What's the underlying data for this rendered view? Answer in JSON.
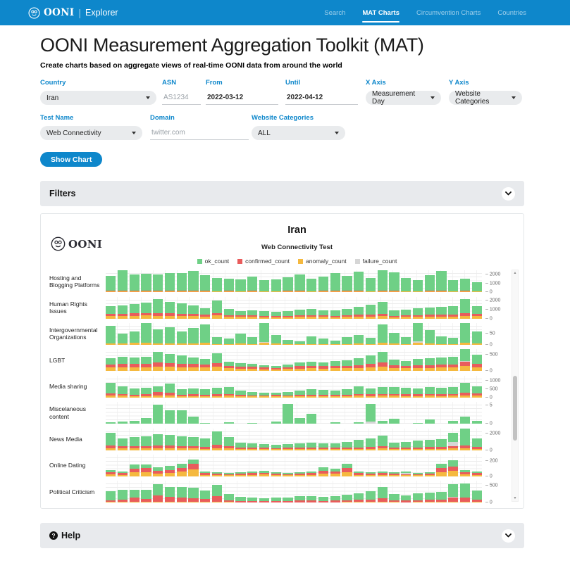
{
  "nav": {
    "brand": "OONI",
    "brand_sub": "Explorer",
    "items": [
      {
        "label": "Search",
        "active": false
      },
      {
        "label": "MAT Charts",
        "active": true
      },
      {
        "label": "Circumvention Charts",
        "active": false
      },
      {
        "label": "Countries",
        "active": false
      }
    ]
  },
  "header": {
    "title": "OONI Measurement Aggregation Toolkit (MAT)",
    "subtitle": "Create charts based on aggregate views of real-time OONI data from around the world"
  },
  "form": {
    "fields": [
      {
        "label": "Country",
        "type": "select",
        "value": "Iran"
      },
      {
        "label": "ASN",
        "type": "input",
        "placeholder": "AS1234"
      },
      {
        "label": "From",
        "type": "date",
        "value": "2022-03-12"
      },
      {
        "label": "Until",
        "type": "date",
        "value": "2022-04-12"
      },
      {
        "label": "X Axis",
        "type": "select",
        "value": "Measurement Day"
      },
      {
        "label": "Y Axis",
        "type": "select",
        "value": "Website Categories"
      },
      {
        "label": "Test Name",
        "type": "select",
        "value": "Web Connectivity"
      },
      {
        "label": "Domain",
        "type": "input",
        "placeholder": "twitter.com"
      },
      {
        "label": "Website Categories",
        "type": "select",
        "value": "ALL"
      }
    ],
    "submit_label": "Show Chart"
  },
  "filters": {
    "label": "Filters"
  },
  "help": {
    "label": "Help"
  },
  "chart": {
    "watermark_label": "OONI"
  },
  "accent_color": "#0e87cb",
  "chart_data": {
    "type": "bar",
    "stacked": true,
    "layout": "small-multiples-by-category",
    "title": "Iran",
    "subtitle": "Web Connectivity Test",
    "x_axis": "Measurement Day",
    "x_start": "2022-03-12",
    "x_end": "2022-04-12",
    "n_bars": 32,
    "legend": [
      "ok_count",
      "confirmed_count",
      "anomaly_count",
      "failure_count"
    ],
    "colors": {
      "ok_count": "#6fd086",
      "confirmed_count": "#e95c5c",
      "anomaly_count": "#f5b93f",
      "failure_count": "#d6d6d6"
    },
    "stack_order_bottom_to_top": [
      "anomaly",
      "confirmed",
      "failure",
      "ok"
    ],
    "rows": [
      {
        "category": "Hosting and Blogging Platforms",
        "max": 2500,
        "ticks": [
          2000,
          1000,
          0
        ],
        "ok": [
          1750,
          2350,
          1850,
          1950,
          1900,
          2050,
          2000,
          2300,
          1800,
          1500,
          1400,
          1350,
          1600,
          1250,
          1350,
          1550,
          1900,
          1450,
          1650,
          2000,
          1700,
          2200,
          1500,
          2350,
          2100,
          1550,
          1300,
          1800,
          2250,
          1300,
          1450,
          1050
        ],
        "confirmed": [
          70,
          60,
          80,
          70,
          60,
          70,
          80,
          70,
          60,
          50,
          60,
          50,
          70,
          40,
          50,
          60,
          70,
          50,
          60,
          70,
          60,
          70,
          50,
          80,
          70,
          50,
          40,
          60,
          70,
          40,
          60,
          50
        ],
        "anomaly": [
          90,
          110,
          100,
          90,
          100,
          110,
          100,
          90,
          80,
          70,
          80,
          70,
          90,
          60,
          70,
          80,
          90,
          70,
          80,
          90,
          80,
          90,
          70,
          100,
          90,
          70,
          60,
          80,
          90,
          60,
          80,
          70
        ],
        "failure": [
          0,
          0,
          0,
          0,
          0,
          0,
          0,
          0,
          0,
          0,
          0,
          0,
          0,
          20,
          0,
          0,
          0,
          0,
          0,
          0,
          0,
          0,
          0,
          0,
          0,
          0,
          0,
          0,
          0,
          0,
          0,
          0
        ]
      },
      {
        "category": "Human Rights Issues",
        "max": 2400,
        "ticks": [
          2000,
          1000,
          0
        ],
        "ok": [
          800,
          950,
          1050,
          1150,
          1550,
          1250,
          1100,
          950,
          700,
          1350,
          650,
          500,
          550,
          500,
          450,
          500,
          600,
          650,
          550,
          550,
          700,
          900,
          1100,
          1350,
          550,
          650,
          750,
          800,
          850,
          950,
          1550,
          850
        ],
        "confirmed": [
          250,
          220,
          280,
          300,
          260,
          280,
          260,
          240,
          200,
          300,
          180,
          150,
          160,
          150,
          140,
          150,
          170,
          180,
          160,
          150,
          180,
          200,
          220,
          250,
          150,
          170,
          190,
          200,
          200,
          220,
          280,
          250
        ],
        "anomaly": [
          280,
          260,
          300,
          320,
          300,
          310,
          280,
          260,
          220,
          320,
          200,
          170,
          180,
          160,
          150,
          160,
          180,
          190,
          170,
          160,
          190,
          210,
          230,
          260,
          160,
          180,
          200,
          210,
          210,
          230,
          290,
          260
        ]
      },
      {
        "category": "Intergovernmental Organizations",
        "max": 100,
        "ticks": [
          50,
          0
        ],
        "ok": [
          78,
          45,
          52,
          90,
          62,
          75,
          55,
          70,
          85,
          30,
          25,
          45,
          32,
          88,
          40,
          20,
          15,
          35,
          25,
          18,
          30,
          40,
          28,
          85,
          50,
          30,
          95,
          60,
          35,
          28,
          98,
          55
        ],
        "anomaly": [
          8,
          6,
          10,
          9,
          8,
          7,
          6,
          8,
          9,
          4,
          3,
          5,
          4,
          10,
          5,
          3,
          2,
          4,
          3,
          2,
          4,
          5,
          3,
          9,
          6,
          4,
          10,
          7,
          4,
          3,
          11,
          6
        ],
        "failure": [
          0,
          0,
          0,
          0,
          0,
          0,
          0,
          0,
          0,
          0,
          0,
          0,
          0,
          4,
          0,
          0,
          0,
          0,
          0,
          0,
          0,
          0,
          0,
          0,
          0,
          0,
          5,
          0,
          0,
          0,
          0,
          0
        ]
      },
      {
        "category": "LGBT",
        "max": 650,
        "ticks": [
          500,
          0
        ],
        "ok": [
          185,
          200,
          190,
          210,
          320,
          280,
          240,
          205,
          180,
          300,
          125,
          105,
          90,
          65,
          55,
          85,
          115,
          130,
          120,
          140,
          160,
          200,
          250,
          330,
          170,
          140,
          180,
          200,
          210,
          220,
          370,
          260
        ],
        "confirmed": [
          90,
          100,
          95,
          100,
          120,
          110,
          100,
          95,
          90,
          110,
          70,
          60,
          55,
          50,
          45,
          55,
          65,
          70,
          65,
          70,
          75,
          85,
          95,
          115,
          80,
          70,
          80,
          85,
          90,
          90,
          130,
          100
        ],
        "anomaly": [
          110,
          120,
          115,
          120,
          140,
          130,
          120,
          115,
          105,
          130,
          85,
          75,
          70,
          60,
          55,
          65,
          80,
          85,
          80,
          85,
          90,
          100,
          115,
          135,
          95,
          85,
          95,
          100,
          105,
          110,
          150,
          120
        ],
        "failure": [
          0,
          0,
          0,
          0,
          0,
          0,
          0,
          0,
          0,
          0,
          0,
          0,
          0,
          0,
          0,
          0,
          0,
          0,
          0,
          0,
          0,
          0,
          0,
          0,
          0,
          0,
          0,
          0,
          0,
          0,
          25,
          0
        ]
      },
      {
        "category": "Media sharing",
        "max": 1300,
        "ticks": [
          1000,
          500,
          0
        ],
        "ok": [
          650,
          460,
          350,
          400,
          360,
          560,
          310,
          350,
          320,
          380,
          420,
          260,
          200,
          180,
          150,
          200,
          250,
          300,
          280,
          250,
          300,
          450,
          350,
          400,
          420,
          380,
          350,
          400,
          380,
          420,
          600,
          450
        ],
        "confirmed": [
          120,
          110,
          90,
          100,
          185,
          160,
          90,
          100,
          90,
          100,
          110,
          80,
          70,
          60,
          80,
          70,
          80,
          90,
          85,
          80,
          90,
          110,
          100,
          110,
          110,
          100,
          95,
          105,
          100,
          110,
          150,
          120
        ],
        "anomaly": [
          110,
          100,
          85,
          95,
          120,
          110,
          85,
          95,
          85,
          95,
          100,
          75,
          65,
          55,
          70,
          65,
          75,
          85,
          80,
          75,
          85,
          100,
          95,
          105,
          100,
          95,
          90,
          100,
          95,
          100,
          130,
          110
        ]
      },
      {
        "category": "Miscelaneous content",
        "max": 6,
        "ticks": [
          5,
          0
        ],
        "ok": [
          0.5,
          0.6,
          0.9,
          1.5,
          5.3,
          3.7,
          3.8,
          1.9,
          0.3,
          0,
          0.4,
          0,
          0.3,
          0,
          0.6,
          5.5,
          1.6,
          2.7,
          0,
          0.5,
          0,
          0.4,
          4.8,
          0.8,
          1.3,
          0,
          0.3,
          1.1,
          0,
          0.8,
          2.0,
          0.9
        ],
        "failure": [
          0,
          0,
          0,
          0,
          0,
          0,
          0,
          0,
          0,
          0,
          0,
          0,
          0,
          0,
          0,
          0,
          0,
          0,
          0,
          0,
          0,
          0,
          0.7,
          0,
          0,
          0,
          0,
          0,
          0,
          0,
          0,
          0
        ]
      },
      {
        "category": "News Media",
        "max": 2600,
        "ticks": [
          2000,
          0
        ],
        "ok": [
          1500,
          950,
          1050,
          1100,
          1400,
          1300,
          1200,
          1100,
          1000,
          1600,
          1100,
          600,
          500,
          450,
          400,
          450,
          550,
          600,
          500,
          550,
          700,
          900,
          1000,
          1300,
          600,
          700,
          800,
          900,
          950,
          1100,
          2200,
          950
        ],
        "confirmed": [
          350,
          250,
          280,
          300,
          320,
          310,
          290,
          270,
          250,
          380,
          260,
          180,
          160,
          150,
          140,
          150,
          170,
          180,
          160,
          150,
          180,
          200,
          220,
          280,
          160,
          180,
          200,
          210,
          210,
          300,
          350,
          250
        ],
        "anomaly": [
          200,
          180,
          190,
          200,
          210,
          200,
          190,
          180,
          170,
          220,
          180,
          130,
          120,
          110,
          100,
          110,
          120,
          130,
          120,
          110,
          130,
          140,
          150,
          180,
          120,
          130,
          140,
          150,
          150,
          180,
          200,
          160
        ],
        "failure": [
          0,
          0,
          0,
          0,
          0,
          0,
          0,
          0,
          0,
          0,
          0,
          0,
          0,
          0,
          0,
          0,
          0,
          0,
          0,
          0,
          0,
          0,
          0,
          0,
          0,
          0,
          0,
          0,
          0,
          500,
          0,
          0
        ]
      },
      {
        "category": "Online Dating",
        "max": 280,
        "ticks": [
          200,
          0
        ],
        "ok": [
          30,
          25,
          60,
          45,
          40,
          50,
          55,
          60,
          25,
          20,
          18,
          20,
          22,
          25,
          20,
          18,
          20,
          22,
          40,
          35,
          60,
          25,
          20,
          22,
          20,
          18,
          17,
          20,
          60,
          80,
          30,
          25
        ],
        "confirmed": [
          25,
          20,
          45,
          50,
          35,
          40,
          50,
          70,
          20,
          18,
          15,
          18,
          20,
          22,
          18,
          15,
          18,
          20,
          35,
          30,
          50,
          20,
          18,
          20,
          18,
          15,
          14,
          18,
          50,
          60,
          25,
          20
        ],
        "anomaly": [
          30,
          22,
          50,
          55,
          40,
          45,
          60,
          90,
          22,
          20,
          16,
          20,
          22,
          25,
          20,
          16,
          20,
          22,
          40,
          32,
          55,
          22,
          20,
          22,
          20,
          16,
          15,
          20,
          55,
          70,
          28,
          22
        ],
        "failure": [
          0,
          0,
          0,
          0,
          0,
          0,
          0,
          0,
          0,
          0,
          0,
          0,
          0,
          0,
          0,
          0,
          0,
          0,
          0,
          0,
          0,
          0,
          0,
          0,
          0,
          10,
          0,
          0,
          0,
          0,
          0,
          0
        ]
      },
      {
        "category": "Political Criticism",
        "max": 650,
        "ticks": [
          500,
          0
        ],
        "ok": [
          260,
          280,
          240,
          260,
          330,
          290,
          310,
          320,
          240,
          330,
          180,
          120,
          100,
          90,
          100,
          110,
          130,
          140,
          120,
          130,
          160,
          200,
          250,
          340,
          190,
          160,
          200,
          220,
          230,
          380,
          420,
          260
        ],
        "confirmed": [
          60,
          70,
          120,
          90,
          180,
          150,
          120,
          110,
          90,
          160,
          60,
          40,
          35,
          30,
          35,
          40,
          45,
          50,
          45,
          45,
          55,
          65,
          75,
          100,
          55,
          50,
          60,
          65,
          65,
          110,
          120,
          75
        ],
        "anomaly": [
          20,
          25,
          30,
          28,
          35,
          32,
          30,
          28,
          25,
          35,
          18,
          14,
          12,
          10,
          12,
          14,
          15,
          16,
          14,
          15,
          18,
          22,
          25,
          32,
          18,
          16,
          20,
          22,
          22,
          35,
          38,
          25
        ],
        "failure": [
          0,
          0,
          0,
          0,
          0,
          0,
          0,
          0,
          0,
          0,
          0,
          0,
          0,
          0,
          0,
          0,
          0,
          0,
          0,
          0,
          0,
          0,
          0,
          0,
          0,
          0,
          0,
          0,
          0,
          25,
          0,
          0
        ]
      }
    ]
  }
}
